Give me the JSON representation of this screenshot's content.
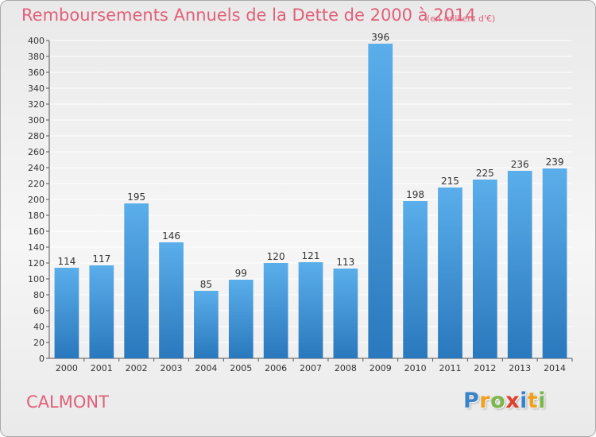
{
  "title": "Remboursements Annuels de la Dette de 2000 à 2014",
  "subtitle": "(en milliers d'€)",
  "commune": "CALMONT",
  "brand": {
    "text": "Proxiti",
    "letters": [
      {
        "ch": "P",
        "color": "#3b83c9"
      },
      {
        "ch": "r",
        "color": "#f0a020"
      },
      {
        "ch": "o",
        "color": "#7ab648"
      },
      {
        "ch": "x",
        "color": "#e0402c"
      },
      {
        "ch": "i",
        "color": "#3b83c9"
      },
      {
        "ch": "t",
        "color": "#f0a020"
      },
      {
        "ch": "i",
        "color": "#7ab648"
      }
    ]
  },
  "colors": {
    "bar_top": "#5aaeea",
    "bar_bottom": "#2a78bd",
    "title": "#e06079",
    "grid": "#ffffff"
  },
  "chart_data": {
    "type": "bar",
    "categories": [
      "2000",
      "2001",
      "2002",
      "2003",
      "2004",
      "2005",
      "2006",
      "2007",
      "2008",
      "2009",
      "2010",
      "2011",
      "2012",
      "2013",
      "2014"
    ],
    "values": [
      114,
      117,
      195,
      146,
      85,
      99,
      120,
      121,
      113,
      396,
      198,
      215,
      225,
      236,
      239
    ],
    "title": "Remboursements Annuels de la Dette de 2000 à 2014",
    "subtitle": "(en milliers d'€)",
    "xlabel": "",
    "ylabel": "",
    "ylim": [
      0,
      400
    ],
    "yticks": [
      0,
      20,
      40,
      60,
      80,
      100,
      120,
      140,
      160,
      180,
      200,
      220,
      240,
      260,
      280,
      300,
      320,
      340,
      360,
      380,
      400
    ],
    "grid": true,
    "data_labels": true
  }
}
